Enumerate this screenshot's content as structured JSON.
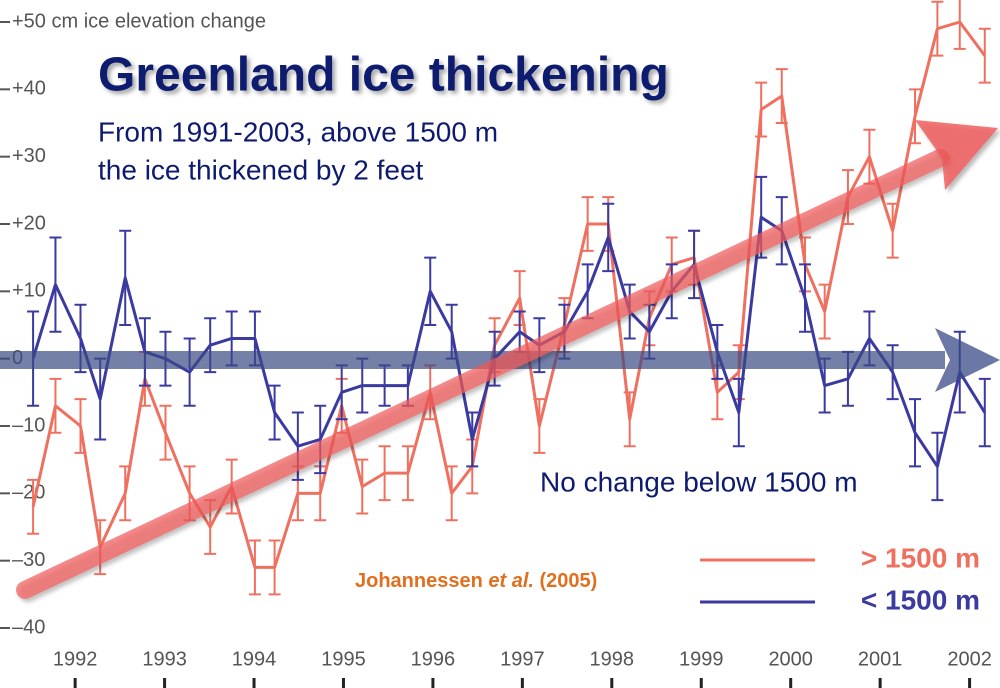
{
  "chart_data": {
    "type": "line",
    "title": "Greenland ice thickening",
    "subtitle": [
      "From 1991-2003, above 1500 m",
      "the ice thickened by 2 feet"
    ],
    "annotation": "No change below 1500 m",
    "citation": [
      "Johannessen ",
      "et al.",
      " (2005)"
    ],
    "x": [
      1991.53,
      1991.78,
      1992.06,
      1992.28,
      1992.56,
      1992.78,
      1993.01,
      1993.28,
      1993.51,
      1993.75,
      1994.01,
      1994.23,
      1994.49,
      1994.74,
      1994.98,
      1995.21,
      1995.46,
      1995.72,
      1995.97,
      1996.21,
      1996.44,
      1996.69,
      1996.97,
      1997.19,
      1997.47,
      1997.73,
      1997.96,
      1998.2,
      1998.42,
      1998.67,
      1998.92,
      1999.18,
      1999.42,
      1999.67,
      1999.9,
      2000.16,
      2000.38,
      2000.64,
      2000.88,
      2001.14,
      2001.39,
      2001.64,
      2001.89,
      2002.17
    ],
    "series": [
      {
        "name": "> 1500 m",
        "color": "#f07060",
        "values": [
          -22,
          -7,
          -10,
          -28,
          -20,
          -3,
          -11,
          -20,
          -25,
          -19,
          -31,
          -31,
          -20,
          -20,
          -7,
          -19,
          -17,
          -17,
          -5,
          -20,
          -16,
          2,
          9,
          -10,
          5,
          20,
          20,
          -9,
          6,
          14,
          15,
          -5,
          -2,
          37,
          39,
          14,
          7,
          24,
          30,
          19,
          36,
          49,
          50,
          45
        ],
        "errors": [
          4,
          4,
          4,
          4,
          4,
          4,
          4,
          4,
          4,
          4,
          4,
          4,
          4,
          4,
          4,
          4,
          4,
          4,
          4,
          4,
          4,
          4,
          4,
          4,
          4,
          4,
          4,
          4,
          4,
          4,
          4,
          4,
          4,
          4,
          4,
          4,
          4,
          4,
          4,
          4,
          4,
          4,
          4,
          4
        ]
      },
      {
        "name": "< 1500 m",
        "color": "#3a3aa0",
        "values": [
          0,
          11,
          3,
          -6,
          12,
          1,
          0,
          -2,
          2,
          3,
          3,
          -8,
          -13,
          -12,
          -5,
          -4,
          -4,
          -4,
          10,
          4,
          -12,
          0,
          4,
          2,
          4,
          10,
          18,
          7,
          4,
          10,
          14,
          1,
          -8,
          21,
          19,
          9,
          -4,
          -3,
          3,
          -2,
          -11,
          -16,
          -2,
          -8
        ],
        "errors": [
          7,
          7,
          5,
          6,
          7,
          5,
          4,
          5,
          4,
          4,
          4,
          4,
          5,
          5,
          4,
          4,
          3,
          3,
          5,
          4,
          4,
          4,
          3,
          4,
          4,
          4,
          5,
          4,
          4,
          4,
          5,
          4,
          5,
          6,
          5,
          5,
          4,
          4,
          4,
          4,
          5,
          5,
          6,
          5
        ]
      }
    ],
    "xlim": [
      1991.16,
      2002.34
    ],
    "xticks": [
      1992,
      1993,
      1994,
      1995,
      1996,
      1997,
      1998,
      1999,
      2000,
      2001,
      2002
    ],
    "ylim": [
      -40,
      50
    ],
    "yticks": [
      {
        "value": 50,
        "label": "+50 cm ice elevation change"
      },
      {
        "value": 40,
        "label": "+40"
      },
      {
        "value": 30,
        "label": "+30"
      },
      {
        "value": 20,
        "label": "+20"
      },
      {
        "value": 10,
        "label": "+10"
      },
      0,
      {
        "value": -10,
        "label": "–10"
      },
      {
        "value": -20,
        "label": "–20"
      },
      {
        "value": -30,
        "label": "–30"
      },
      {
        "value": -40,
        "label": "–40"
      }
    ],
    "legend": "bottom-right"
  }
}
